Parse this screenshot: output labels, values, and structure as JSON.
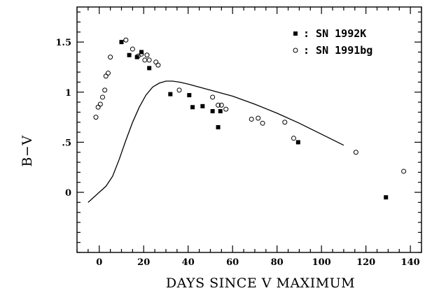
{
  "chart_data": {
    "type": "scatter",
    "title": "",
    "xlabel": "DAYS SINCE V MAXIMUM",
    "ylabel": "B−V",
    "xlim": [
      -10,
      145
    ],
    "ylim": [
      -0.6,
      1.85
    ],
    "x_major_ticks": [
      0,
      20,
      40,
      60,
      80,
      100,
      120,
      140
    ],
    "x_minor_step": 5,
    "y_major_ticks": [
      {
        "value": 0,
        "label": "0"
      },
      {
        "value": 0.5,
        "label": ".5"
      },
      {
        "value": 1,
        "label": "1"
      },
      {
        "value": 1.5,
        "label": "1.5"
      }
    ],
    "y_minor_step": 0.1,
    "grid": false,
    "legend_position": "top-right",
    "series": [
      {
        "name": "SN 1992K",
        "legend_label": ": SN 1992K",
        "marker": "filled-square",
        "points": [
          [
            10,
            1.5
          ],
          [
            13.5,
            1.37
          ],
          [
            17,
            1.35
          ],
          [
            19,
            1.4
          ],
          [
            22.5,
            1.24
          ],
          [
            32,
            0.98
          ],
          [
            40.5,
            0.97
          ],
          [
            42,
            0.85
          ],
          [
            46.5,
            0.86
          ],
          [
            51,
            0.81
          ],
          [
            53.5,
            0.65
          ],
          [
            54.5,
            0.81
          ],
          [
            89.5,
            0.5
          ],
          [
            129,
            -0.05
          ]
        ]
      },
      {
        "name": "SN 1991bg",
        "legend_label": ": SN 1991bg",
        "marker": "open-circle",
        "points": [
          [
            -1.5,
            0.75
          ],
          [
            -0.5,
            0.85
          ],
          [
            0.5,
            0.88
          ],
          [
            1.5,
            0.95
          ],
          [
            2.5,
            1.02
          ],
          [
            3,
            1.16
          ],
          [
            4,
            1.19
          ],
          [
            5,
            1.35
          ],
          [
            12,
            1.52
          ],
          [
            15,
            1.43
          ],
          [
            17.5,
            1.36
          ],
          [
            19,
            1.38
          ],
          [
            20.5,
            1.32
          ],
          [
            21.5,
            1.37
          ],
          [
            22.5,
            1.32
          ],
          [
            25.5,
            1.3
          ],
          [
            26.5,
            1.27
          ],
          [
            36,
            1.02
          ],
          [
            51,
            0.95
          ],
          [
            53.5,
            0.87
          ],
          [
            55,
            0.87
          ],
          [
            57,
            0.83
          ],
          [
            68.5,
            0.73
          ],
          [
            71.5,
            0.74
          ],
          [
            73.5,
            0.69
          ],
          [
            83.5,
            0.7
          ],
          [
            87.5,
            0.54
          ],
          [
            115.5,
            0.4
          ],
          [
            137,
            0.21
          ]
        ]
      },
      {
        "name": "",
        "marker": "line",
        "points": [
          [
            -5,
            -0.1
          ],
          [
            0,
            0
          ],
          [
            3,
            0.06
          ],
          [
            6,
            0.16
          ],
          [
            9,
            0.33
          ],
          [
            12,
            0.52
          ],
          [
            15,
            0.7
          ],
          [
            18,
            0.85
          ],
          [
            21,
            0.97
          ],
          [
            24,
            1.05
          ],
          [
            27,
            1.09
          ],
          [
            30,
            1.11
          ],
          [
            33,
            1.11
          ],
          [
            36,
            1.1
          ],
          [
            40,
            1.08
          ],
          [
            50,
            1.02
          ],
          [
            60,
            0.96
          ],
          [
            70,
            0.88
          ],
          [
            80,
            0.79
          ],
          [
            90,
            0.69
          ],
          [
            100,
            0.58
          ],
          [
            110,
            0.47
          ]
        ]
      }
    ]
  }
}
